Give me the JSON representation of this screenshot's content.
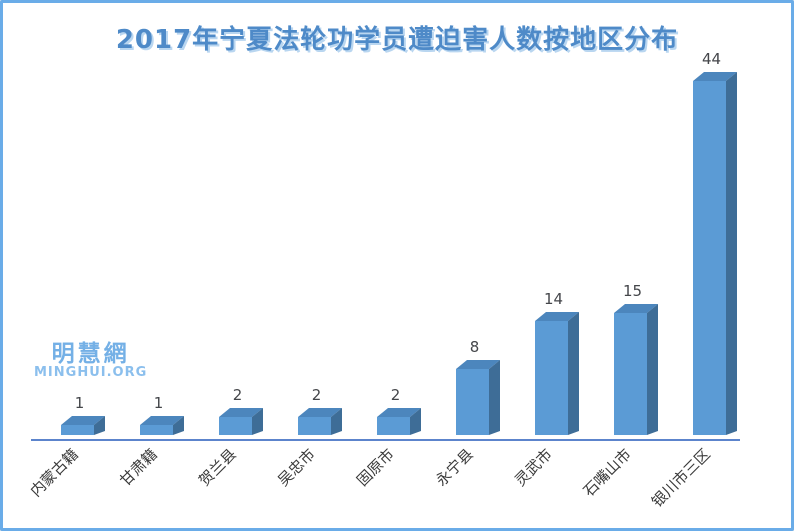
{
  "frame": {
    "border_color": "#6aace8",
    "background": "#ffffff"
  },
  "watermark": {
    "line1": "明慧網",
    "line2": "MINGHUI.ORG",
    "color": "#7eb5e9"
  },
  "chart_data": {
    "type": "bar",
    "style": "3d-column",
    "title": "2017年宁夏法轮功学员遭迫害人数按地区分布",
    "categories": [
      "内蒙古籍",
      "甘肃籍",
      "贺兰县",
      "吴忠市",
      "固原市",
      "永宁县",
      "灵武市",
      "石嘴山市",
      "银川市三区"
    ],
    "values": [
      1,
      1,
      2,
      2,
      2,
      8,
      14,
      15,
      44
    ],
    "value_labels_shown": true,
    "xlabel": "",
    "ylabel": "",
    "ylim": [
      0,
      45
    ],
    "grid": false,
    "legend": false,
    "category_label_rotation_deg": -45,
    "colors": {
      "title": "#4e8ac8",
      "bar_front": "#5b9bd5",
      "bar_top": "#4c86bd",
      "bar_side": "#3e6d97",
      "axis_line": "#4472c4",
      "value_label": "#44464a",
      "category_label": "#3a3a3a"
    }
  }
}
